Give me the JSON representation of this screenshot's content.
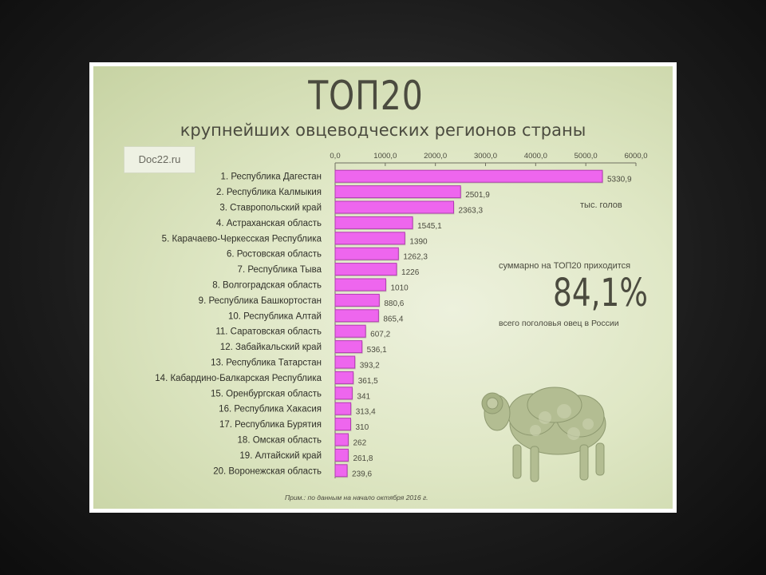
{
  "title": "ТОП20",
  "subtitle": "крупнейших овцеводческих регионов страны",
  "site_label": "Doc22.ru",
  "units_note": "тыс. голов",
  "summary_prefix": "суммарно на ТОП20 приходится",
  "summary_value": "84,1%",
  "summary_suffix": "всего поголовья овец в России",
  "footnote": "Прим.: по данным на начало октября 2016 г.",
  "colors": {
    "bar": "#ee66ee",
    "bar_edge": "#b23cb2",
    "text": "#4b4b3f"
  },
  "chart_data": {
    "type": "bar",
    "orientation": "horizontal",
    "xlim": [
      0,
      6000
    ],
    "x_ticks": [
      "0,0",
      "1000,0",
      "2000,0",
      "3000,0",
      "4000,0",
      "5000,0",
      "6000,0"
    ],
    "categories": [
      "1. Республика Дагестан",
      "2. Республика Калмыкия",
      "3. Ставропольский край",
      "4. Астраханская область",
      "5. Карачаево-Черкесская Республика",
      "6. Ростовская область",
      "7. Республика Тыва",
      "8. Волгоградская область",
      "9. Республика Башкортостан",
      "10. Республика Алтай",
      "11. Саратовская область",
      "12. Забайкальский край",
      "13. Республика Татарстан",
      "14. Кабардино-Балкарская Республика",
      "15. Оренбургская область",
      "16. Республика Хакасия",
      "17. Республика Бурятия",
      "18. Омская область",
      "19. Алтайский край",
      "20. Воронежская область"
    ],
    "values": [
      5330.9,
      2501.9,
      2363.3,
      1545.1,
      1390,
      1262.3,
      1226,
      1010,
      880.6,
      865.4,
      607.2,
      536.1,
      393.2,
      361.5,
      341,
      313.4,
      310,
      262,
      261.8,
      239.6
    ],
    "value_labels": [
      "5330,9",
      "2501,9",
      "2363,3",
      "1545,1",
      "1390",
      "1262,3",
      "1226",
      "1010",
      "880,6",
      "865,4",
      "607,2",
      "536,1",
      "393,2",
      "361,5",
      "341",
      "313,4",
      "310",
      "262",
      "261,8",
      "239,6"
    ]
  }
}
